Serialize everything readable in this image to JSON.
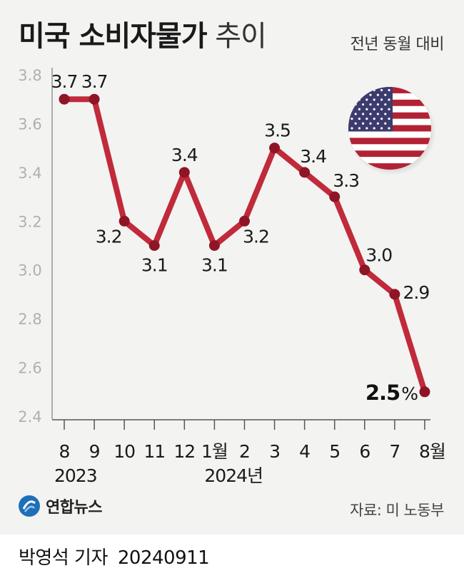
{
  "header": {
    "title_bold": "미국 소비자물가",
    "title_light": "추이",
    "subtitle": "전년 동월 대비"
  },
  "chart_data": {
    "type": "line",
    "title": "미국 소비자물가 추이",
    "subtitle": "전년 동월 대비",
    "categories": [
      "8",
      "9",
      "10",
      "11",
      "12",
      "1월",
      "2",
      "3",
      "4",
      "5",
      "6",
      "7",
      "8월"
    ],
    "year_labels": [
      {
        "text": "2023",
        "at_category": 0
      },
      {
        "text": "2024년",
        "at_category": 5
      }
    ],
    "series": [
      {
        "values": [
          3.7,
          3.7,
          3.2,
          3.1,
          3.4,
          3.1,
          3.2,
          3.5,
          3.4,
          3.3,
          3.0,
          2.9,
          2.5
        ]
      }
    ],
    "data_labels": [
      "3.7",
      "3.7",
      "3.2",
      "3.1",
      "3.4",
      "3.1",
      "3.2",
      "3.5",
      "3.4",
      "3.3",
      "3.0",
      "2.9",
      "2.5"
    ],
    "highlight_label": {
      "value": "2.5",
      "unit": "%"
    },
    "y_ticks": [
      "3.8",
      "3.6",
      "3.4",
      "3.2",
      "3.0",
      "2.8",
      "2.6",
      "2.4"
    ],
    "ylim": [
      2.4,
      3.8
    ],
    "grid": false,
    "colors": {
      "line": "#c02a3a",
      "marker": "#8e1526",
      "axis": "#555555",
      "tick_label": "#b0b0b0"
    }
  },
  "footer": {
    "logo_text": "연합뉴스",
    "source": "자료: 미 노동부",
    "reporter": "박영석 기자",
    "date": "20240911"
  },
  "icons": {
    "flag": "us-flag-icon",
    "logo": "yonhap-logo-icon"
  }
}
